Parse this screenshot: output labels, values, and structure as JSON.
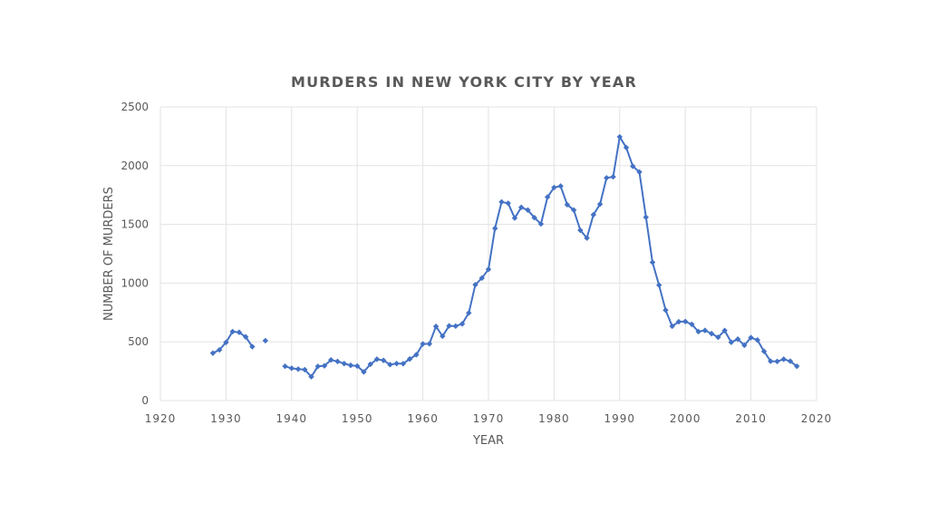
{
  "chart_data": {
    "type": "line",
    "title": "MURDERS IN NEW YORK CITY BY YEAR",
    "xlabel": "YEAR",
    "ylabel": "NUMBER OF MURDERS",
    "xlim": [
      1920,
      2020
    ],
    "ylim": [
      0,
      2500
    ],
    "xticks": [
      1920,
      1930,
      1940,
      1950,
      1960,
      1970,
      1980,
      1990,
      2000,
      2010,
      2020
    ],
    "yticks": [
      0,
      500,
      1000,
      1500,
      2000,
      2500
    ],
    "grid": true,
    "legend": "none",
    "color": "#4472c4",
    "series": [
      {
        "segments": [
          [
            [
              1928,
              404
            ],
            [
              1929,
              432
            ],
            [
              1930,
              495
            ],
            [
              1931,
              587
            ],
            [
              1932,
              581
            ],
            [
              1933,
              542
            ],
            [
              1934,
              459
            ]
          ],
          [
            [
              1936,
              510
            ]
          ],
          [
            [
              1939,
              292
            ],
            [
              1940,
              275
            ],
            [
              1941,
              268
            ],
            [
              1942,
              263
            ],
            [
              1943,
              203
            ],
            [
              1944,
              291
            ],
            [
              1945,
              296
            ],
            [
              1946,
              346
            ],
            [
              1947,
              333
            ],
            [
              1948,
              315
            ],
            [
              1949,
              300
            ],
            [
              1950,
              294
            ],
            [
              1951,
              244
            ],
            [
              1952,
              309
            ],
            [
              1953,
              352
            ],
            [
              1954,
              342
            ],
            [
              1955,
              306
            ],
            [
              1956,
              315
            ],
            [
              1957,
              314
            ],
            [
              1958,
              354
            ],
            [
              1959,
              390
            ],
            [
              1960,
              482
            ],
            [
              1961,
              483
            ],
            [
              1962,
              631
            ],
            [
              1963,
              548
            ],
            [
              1964,
              636
            ],
            [
              1965,
              634
            ],
            [
              1966,
              653
            ],
            [
              1967,
              746
            ],
            [
              1968,
              986
            ],
            [
              1969,
              1043
            ],
            [
              1970,
              1117
            ],
            [
              1971,
              1466
            ],
            [
              1972,
              1691
            ],
            [
              1973,
              1680
            ],
            [
              1974,
              1554
            ],
            [
              1975,
              1645
            ],
            [
              1976,
              1622
            ],
            [
              1977,
              1557
            ],
            [
              1978,
              1504
            ],
            [
              1979,
              1733
            ],
            [
              1980,
              1814
            ],
            [
              1981,
              1826
            ],
            [
              1982,
              1668
            ],
            [
              1983,
              1622
            ],
            [
              1984,
              1450
            ],
            [
              1985,
              1384
            ],
            [
              1986,
              1582
            ],
            [
              1987,
              1672
            ],
            [
              1988,
              1896
            ],
            [
              1989,
              1905
            ],
            [
              1990,
              2245
            ],
            [
              1991,
              2154
            ],
            [
              1992,
              1995
            ],
            [
              1993,
              1946
            ],
            [
              1994,
              1561
            ],
            [
              1995,
              1177
            ],
            [
              1996,
              983
            ],
            [
              1997,
              770
            ],
            [
              1998,
              633
            ],
            [
              1999,
              671
            ],
            [
              2000,
              673
            ],
            [
              2001,
              649
            ],
            [
              2002,
              587
            ],
            [
              2003,
              597
            ],
            [
              2004,
              570
            ],
            [
              2005,
              539
            ],
            [
              2006,
              596
            ],
            [
              2007,
              496
            ],
            [
              2008,
              523
            ],
            [
              2009,
              471
            ],
            [
              2010,
              536
            ],
            [
              2011,
              515
            ],
            [
              2012,
              419
            ],
            [
              2013,
              335
            ],
            [
              2014,
              333
            ],
            [
              2015,
              352
            ],
            [
              2016,
              335
            ],
            [
              2017,
              292
            ]
          ]
        ]
      }
    ]
  }
}
